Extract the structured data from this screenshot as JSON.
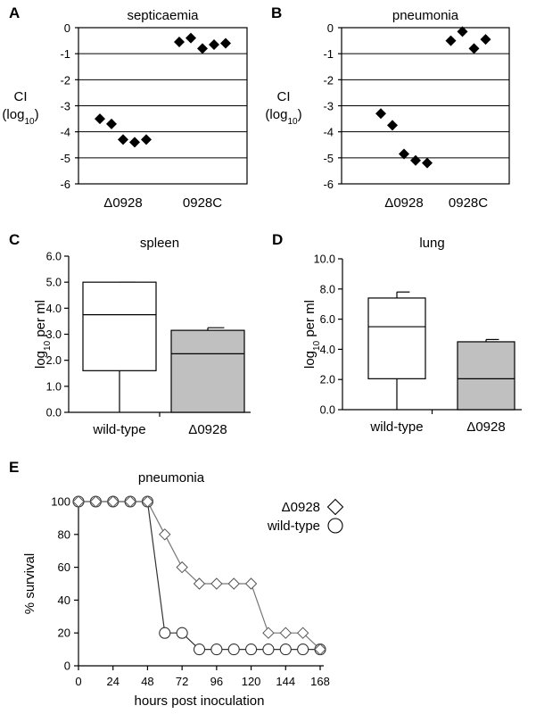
{
  "chart_data": [
    {
      "panel": "A",
      "type": "scatter",
      "title": "septicaemia",
      "ylabel": "CI",
      "ylabel_sub": "(log",
      "ylabel_subscript": "10",
      "ylabel_close": ")",
      "ylim": [
        -6,
        0
      ],
      "yticks": [
        "0",
        "-1",
        "-2",
        "-3",
        "-4",
        "-5",
        "-6"
      ],
      "grid": true,
      "categories": [
        "Δ0928",
        "0928C"
      ],
      "series": [
        {
          "name": "Δ0928",
          "values": [
            -3.5,
            -3.7,
            -4.3,
            -4.4,
            -4.3
          ]
        },
        {
          "name": "0928C",
          "values": [
            -0.55,
            -0.4,
            -0.8,
            -0.65,
            -0.6
          ]
        }
      ]
    },
    {
      "panel": "B",
      "type": "scatter",
      "title": "pneumonia",
      "ylabel": "CI",
      "ylabel_sub": "(log",
      "ylabel_subscript": "10",
      "ylabel_close": ")",
      "ylim": [
        -6,
        0
      ],
      "yticks": [
        "0",
        "-1",
        "-2",
        "-3",
        "-4",
        "-5",
        "-6"
      ],
      "grid": true,
      "categories": [
        "Δ0928",
        "0928C"
      ],
      "series": [
        {
          "name": "Δ0928",
          "values": [
            -3.3,
            -3.75,
            -4.85,
            -5.1,
            -5.2
          ]
        },
        {
          "name": "0928C",
          "values": [
            -0.5,
            -0.15,
            -0.8,
            -0.45
          ]
        }
      ]
    },
    {
      "panel": "C",
      "type": "box",
      "title": "spleen",
      "ylabel": "log",
      "ylabel_subscript": "10",
      "ylabel_suffix": " per ml",
      "ylim": [
        0,
        6
      ],
      "yticks": [
        "0.0",
        "1.0",
        "2.0",
        "3.0",
        "4.0",
        "5.0",
        "6.0"
      ],
      "categories": [
        "wild-type",
        "Δ0928"
      ],
      "boxes": [
        {
          "name": "wild-type",
          "min": 0.0,
          "q1": 1.6,
          "median": 3.75,
          "q3": 5.0,
          "max": 5.0,
          "fill": "#ffffff"
        },
        {
          "name": "Δ0928",
          "min": 0.0,
          "q1": 0.0,
          "median": 2.25,
          "q3": 3.15,
          "max": 3.25,
          "fill": "#c0c0c0"
        }
      ]
    },
    {
      "panel": "D",
      "type": "box",
      "title": "lung",
      "ylabel": "log",
      "ylabel_subscript": "10",
      "ylabel_suffix": " per ml",
      "ylim": [
        0,
        10
      ],
      "yticks": [
        "0.0",
        "2.0",
        "4.0",
        "6.0",
        "8.0",
        "10.0"
      ],
      "categories": [
        "wild-type",
        "Δ0928"
      ],
      "boxes": [
        {
          "name": "wild-type",
          "min": 0.0,
          "q1": 2.05,
          "median": 5.5,
          "q3": 7.4,
          "max": 7.8,
          "fill": "#ffffff"
        },
        {
          "name": "Δ0928",
          "min": 0.0,
          "q1": 0.0,
          "median": 2.05,
          "q3": 4.5,
          "max": 4.65,
          "fill": "#c0c0c0"
        }
      ]
    },
    {
      "panel": "E",
      "type": "line",
      "title": "pneumonia",
      "xlabel": "hours post inoculation",
      "ylabel": "% survival",
      "xlim": [
        0,
        168
      ],
      "ylim": [
        0,
        100
      ],
      "xticks": [
        0,
        24,
        48,
        72,
        96,
        120,
        144,
        168
      ],
      "yticks": [
        0,
        20,
        40,
        60,
        80,
        100
      ],
      "legend_position": "top-right",
      "series": [
        {
          "name": "Δ0928",
          "marker": "diamond",
          "x": [
            0,
            12,
            24,
            36,
            48,
            60,
            72,
            84,
            96,
            108,
            120,
            132,
            144,
            156,
            168
          ],
          "y": [
            100,
            100,
            100,
            100,
            100,
            80,
            60,
            50,
            50,
            50,
            50,
            20,
            20,
            20,
            10
          ]
        },
        {
          "name": "wild-type",
          "marker": "circle",
          "x": [
            0,
            12,
            24,
            36,
            48,
            60,
            72,
            84,
            96,
            108,
            120,
            132,
            144,
            156,
            168
          ],
          "y": [
            100,
            100,
            100,
            100,
            100,
            20,
            20,
            10,
            10,
            10,
            10,
            10,
            10,
            10,
            10
          ]
        }
      ]
    }
  ]
}
